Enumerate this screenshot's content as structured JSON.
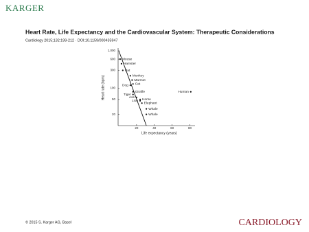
{
  "slide": {
    "logo": "KARGER",
    "title": "Heart Rate, Life Expectancy and the Cardiovascular System: Therapeutic Considerations",
    "citation": "Cardiology 2015;132:199-212 · DOI:10.1159/000435947",
    "footer": "© 2015 S. Karger AG, Basel",
    "journal": "CARDIOLOGY"
  },
  "chart_data": {
    "type": "scatter",
    "xlabel": "Life expectancy (years)",
    "ylabel": "Heart rate (bpm)",
    "categories": [
      "Mouse",
      "Hamster",
      "Rat",
      "Monkey",
      "Marmot",
      "Cat",
      "Dog",
      "Giraffe",
      "Tiger",
      "Ass",
      "Horse",
      "Lion",
      "Elephant",
      "Whale",
      "Whale",
      "Human"
    ],
    "x": [
      1.5,
      3,
      4.5,
      13,
      15,
      16,
      13,
      16,
      16,
      20,
      24,
      24,
      26,
      31,
      31,
      81
    ],
    "values": [
      600,
      450,
      300,
      215,
      165,
      130,
      120,
      80,
      68,
      57,
      50,
      46,
      40,
      28,
      20,
      80
    ],
    "color": "#111111",
    "xlim": [
      0,
      85
    ],
    "ylim": [
      10,
      1000
    ],
    "xticks": [
      20,
      40,
      60,
      80
    ],
    "yticks": [
      {
        "value": 1000,
        "label": "1,000"
      },
      600,
      300,
      100,
      50,
      20
    ],
    "log_y": true,
    "trend": {
      "x": [
        0,
        31
      ],
      "values": [
        1000,
        10
      ]
    }
  }
}
